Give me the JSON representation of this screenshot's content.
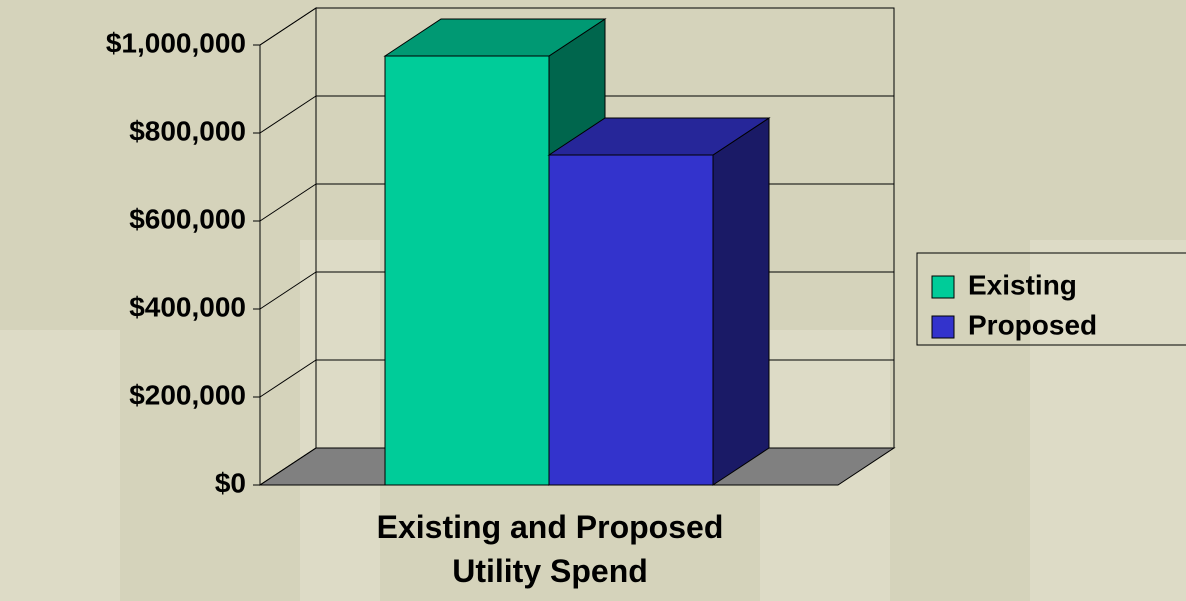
{
  "chart_data": {
    "type": "bar3d",
    "categories": [
      "Existing and Proposed Utility Spend"
    ],
    "series": [
      {
        "name": "Existing",
        "color": "#00cc99",
        "values": [
          975000
        ]
      },
      {
        "name": "Proposed",
        "color": "#3333cc",
        "values": [
          750000
        ]
      }
    ],
    "ylim": [
      0,
      1000000
    ],
    "yticks": [
      {
        "value": 0,
        "label": "$0"
      },
      {
        "value": 200000,
        "label": "$200,000"
      },
      {
        "value": 400000,
        "label": "$400,000"
      },
      {
        "value": 600000,
        "label": "$600,000"
      },
      {
        "value": 800000,
        "label": "$800,000"
      },
      {
        "value": 1000000,
        "label": "$1,000,000"
      }
    ],
    "grid": true,
    "legend": "right"
  }
}
